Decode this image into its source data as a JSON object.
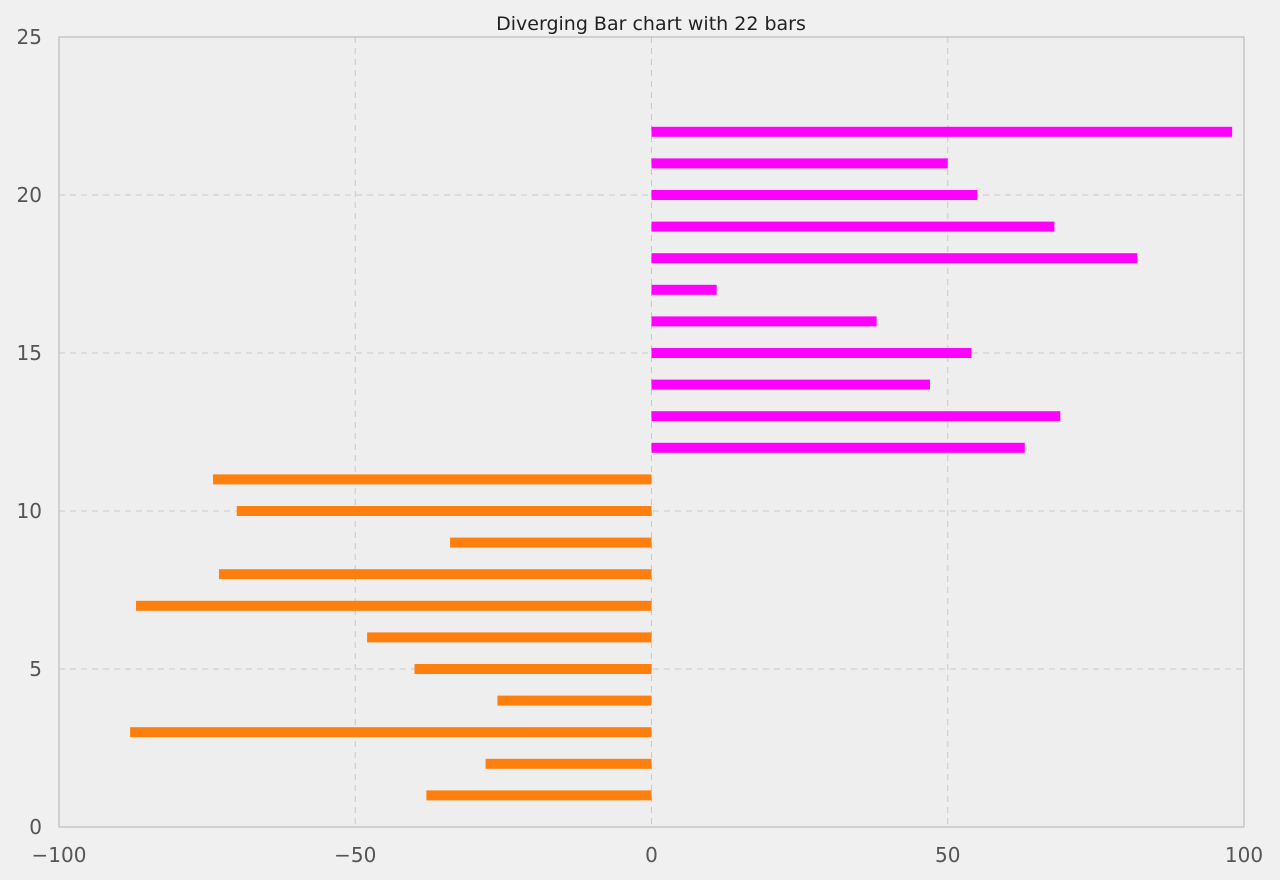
{
  "chart_data": {
    "type": "bar",
    "orientation": "horizontal",
    "title": "Diverging Bar chart with 22 bars",
    "xlabel": "",
    "ylabel": "",
    "xlim": [
      -100,
      100
    ],
    "ylim": [
      0,
      25
    ],
    "x_ticks": [
      -100,
      -50,
      0,
      50,
      100
    ],
    "x_tick_labels": [
      "−100",
      "−50",
      "0",
      "50",
      "100"
    ],
    "y_ticks": [
      0,
      5,
      10,
      15,
      20,
      25
    ],
    "y_tick_labels": [
      "0",
      "5",
      "10",
      "15",
      "20",
      "25"
    ],
    "grid": true,
    "legend": "none",
    "colors": {
      "negative": "#ff7f0e",
      "positive": "#ff00ff",
      "plot_background": "#eeeeee",
      "figure_background": "#f0f0f0",
      "grid": "#c8c8c8",
      "spine": "#bcbcbc"
    },
    "bars": [
      {
        "y": 1,
        "value": -38
      },
      {
        "y": 2,
        "value": -28
      },
      {
        "y": 3,
        "value": -88
      },
      {
        "y": 4,
        "value": -26
      },
      {
        "y": 5,
        "value": -40
      },
      {
        "y": 6,
        "value": -48
      },
      {
        "y": 7,
        "value": -87
      },
      {
        "y": 8,
        "value": -73
      },
      {
        "y": 9,
        "value": -34
      },
      {
        "y": 10,
        "value": -70
      },
      {
        "y": 11,
        "value": -74
      },
      {
        "y": 12,
        "value": 63
      },
      {
        "y": 13,
        "value": 69
      },
      {
        "y": 14,
        "value": 47
      },
      {
        "y": 15,
        "value": 54
      },
      {
        "y": 16,
        "value": 38
      },
      {
        "y": 17,
        "value": 11
      },
      {
        "y": 18,
        "value": 82
      },
      {
        "y": 19,
        "value": 68
      },
      {
        "y": 20,
        "value": 55
      },
      {
        "y": 21,
        "value": 50
      },
      {
        "y": 22,
        "value": 98
      }
    ]
  }
}
